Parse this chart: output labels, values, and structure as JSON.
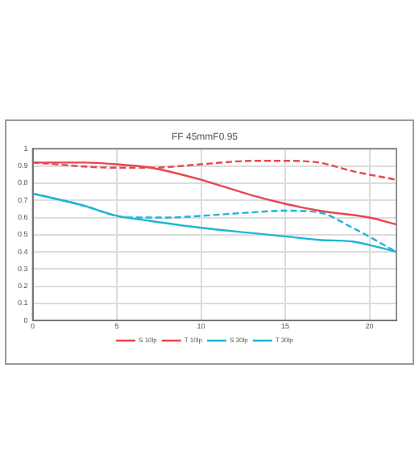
{
  "chart_data": {
    "type": "line",
    "title": "FF 45mmF0.95",
    "xlim": [
      0,
      21.6
    ],
    "xticks": [
      0,
      5,
      10,
      15,
      20
    ],
    "ylim": [
      0,
      1
    ],
    "yticks": [
      0,
      0.1,
      0.2,
      0.3,
      0.4,
      0.5,
      0.6,
      0.7,
      0.8,
      0.9,
      1
    ],
    "grid": true,
    "legend": "bottom",
    "marker": "none",
    "series": [
      {
        "name": "S 10lp",
        "color": "#e8474f",
        "line_style": "solid",
        "x": [
          0,
          3,
          5,
          7,
          10,
          13,
          15,
          17,
          20,
          21.6
        ],
        "values": [
          0.92,
          0.92,
          0.91,
          0.89,
          0.82,
          0.73,
          0.68,
          0.64,
          0.6,
          0.56
        ]
      },
      {
        "name": "T 10lp",
        "color": "#e8474f",
        "line_style": "dashed",
        "x": [
          0,
          5,
          7,
          10,
          13,
          15,
          17,
          19,
          21.6
        ],
        "values": [
          0.92,
          0.89,
          0.89,
          0.91,
          0.93,
          0.93,
          0.92,
          0.87,
          0.82
        ]
      },
      {
        "name": "S 30lp",
        "color": "#1fb5d6",
        "line_style": "solid",
        "x": [
          0,
          3,
          5,
          7,
          10,
          13,
          15,
          17,
          19,
          20,
          21.6
        ],
        "values": [
          0.74,
          0.67,
          0.61,
          0.58,
          0.54,
          0.51,
          0.49,
          0.47,
          0.46,
          0.44,
          0.4
        ]
      },
      {
        "name": "T 30lp",
        "color": "#1fb5d6",
        "line_style": "dashed",
        "x": [
          0,
          3,
          5,
          6,
          8,
          10,
          13,
          15,
          17,
          19,
          21.6
        ],
        "values": [
          0.74,
          0.67,
          0.61,
          0.6,
          0.6,
          0.61,
          0.63,
          0.64,
          0.63,
          0.54,
          0.4
        ]
      }
    ]
  }
}
